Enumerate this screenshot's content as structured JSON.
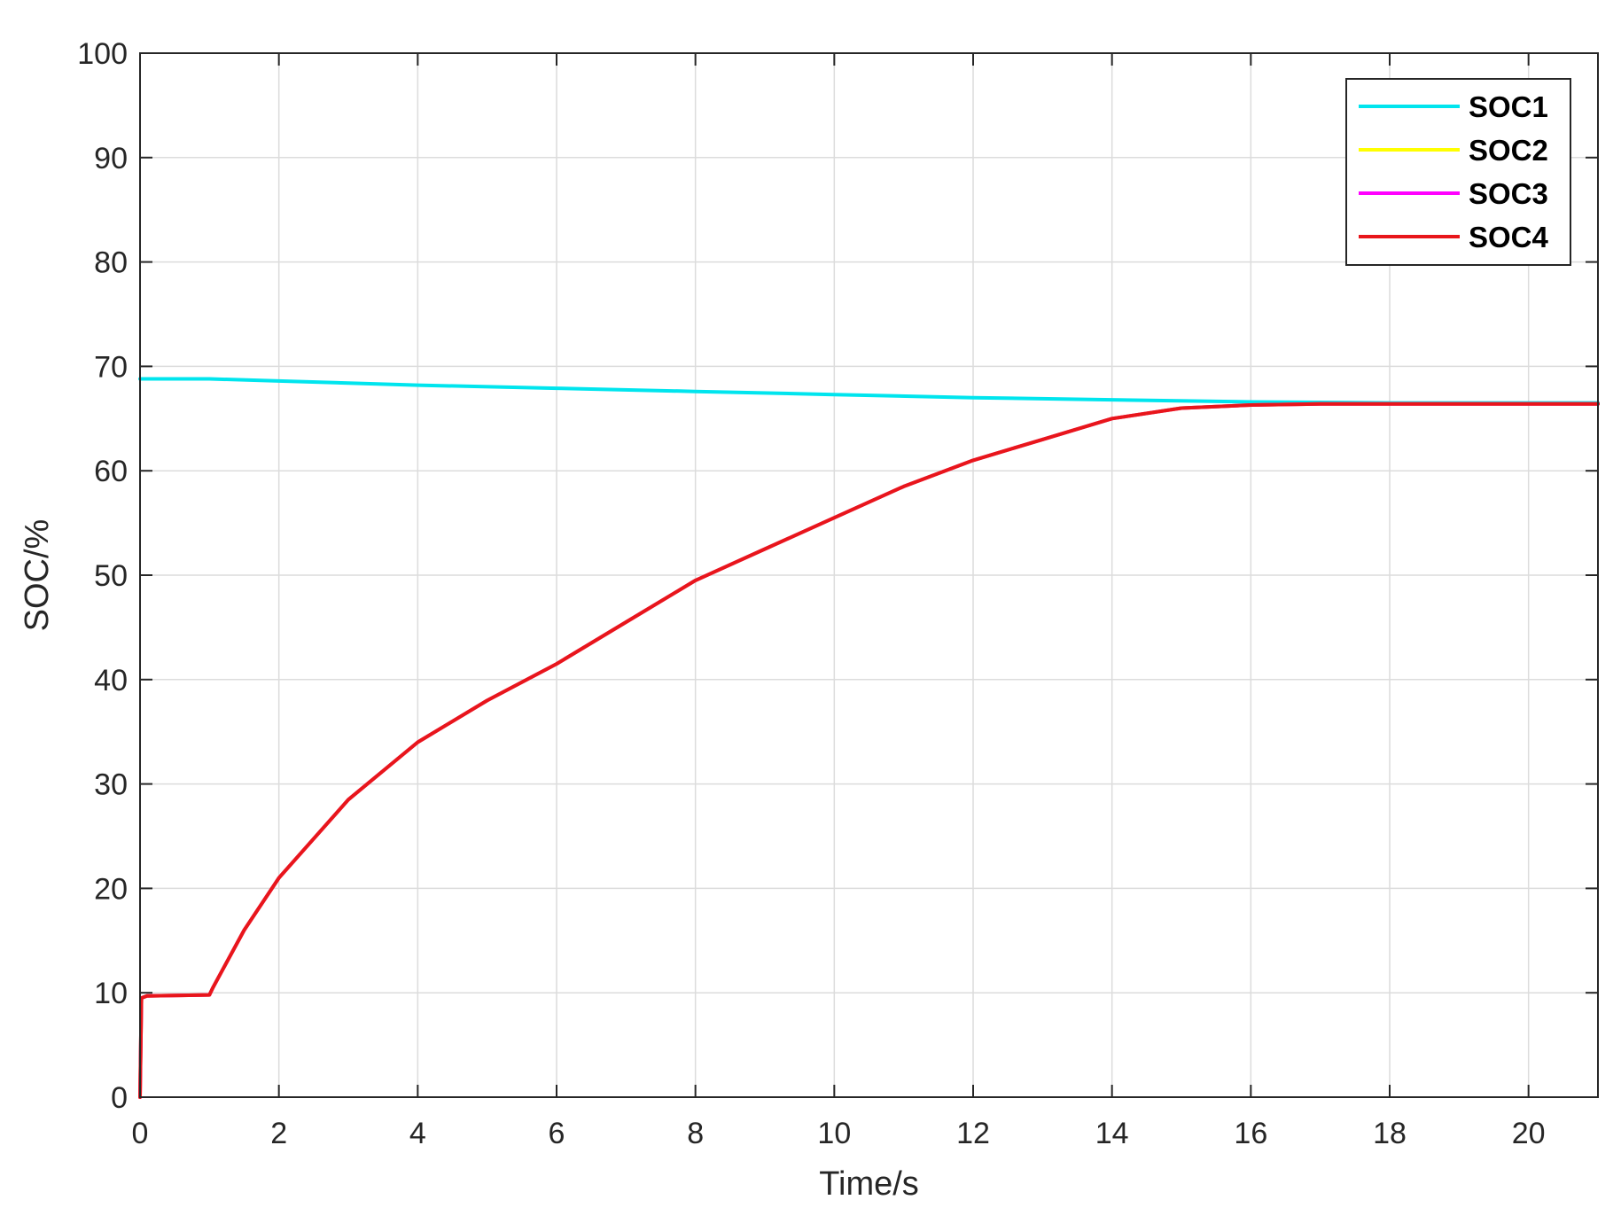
{
  "chart_data": {
    "type": "line",
    "title": "",
    "xlabel": "Time/s",
    "ylabel": "SOC/%",
    "xlim": [
      0,
      21
    ],
    "ylim": [
      0,
      100
    ],
    "xticks": [
      "0",
      "2",
      "4",
      "6",
      "8",
      "10",
      "12",
      "14",
      "16",
      "18",
      "20"
    ],
    "yticks": [
      "0",
      "10",
      "20",
      "30",
      "40",
      "50",
      "60",
      "70",
      "80",
      "90",
      "100"
    ],
    "grid": true,
    "legend_position": "top-right",
    "series": [
      {
        "name": "SOC1",
        "color": "#00e5ee",
        "x": [
          0,
          1,
          2,
          4,
          6,
          8,
          10,
          12,
          14,
          16,
          18,
          20,
          21
        ],
        "y": [
          68.8,
          68.8,
          68.6,
          68.2,
          67.9,
          67.6,
          67.3,
          67.0,
          66.8,
          66.6,
          66.5,
          66.5,
          66.5
        ]
      },
      {
        "name": "SOC2",
        "color": "#ffff00",
        "x": [
          0,
          0.02,
          0.1,
          1,
          1.05,
          1.5,
          2,
          3,
          4,
          5,
          6,
          7,
          8,
          9,
          10,
          11,
          12,
          13,
          14,
          15,
          16,
          17,
          18,
          19,
          20,
          21
        ],
        "y": [
          0,
          9.5,
          9.7,
          9.8,
          10.5,
          16,
          21,
          28.5,
          34,
          38,
          41.5,
          45.5,
          49.5,
          52.5,
          55.5,
          58.5,
          61,
          63,
          65,
          66,
          66.3,
          66.4,
          66.4,
          66.4,
          66.4,
          66.4
        ]
      },
      {
        "name": "SOC3",
        "color": "#ff00ff",
        "x": [
          0,
          0.02,
          0.1,
          1,
          1.05,
          1.5,
          2,
          3,
          4,
          5,
          6,
          7,
          8,
          9,
          10,
          11,
          12,
          13,
          14,
          15,
          16,
          17,
          18,
          19,
          20,
          21
        ],
        "y": [
          0,
          9.5,
          9.7,
          9.8,
          10.5,
          16,
          21,
          28.5,
          34,
          38,
          41.5,
          45.5,
          49.5,
          52.5,
          55.5,
          58.5,
          61,
          63,
          65,
          66,
          66.3,
          66.4,
          66.4,
          66.4,
          66.4,
          66.4
        ]
      },
      {
        "name": "SOC4",
        "color": "#e8161b",
        "x": [
          0,
          0.02,
          0.1,
          1,
          1.05,
          1.5,
          2,
          3,
          4,
          5,
          6,
          7,
          8,
          9,
          10,
          11,
          12,
          13,
          14,
          15,
          16,
          17,
          18,
          19,
          20,
          21
        ],
        "y": [
          0,
          9.5,
          9.7,
          9.8,
          10.5,
          16,
          21,
          28.5,
          34,
          38,
          41.5,
          45.5,
          49.5,
          52.5,
          55.5,
          58.5,
          61,
          63,
          65,
          66,
          66.3,
          66.4,
          66.4,
          66.4,
          66.4,
          66.4
        ]
      }
    ]
  }
}
